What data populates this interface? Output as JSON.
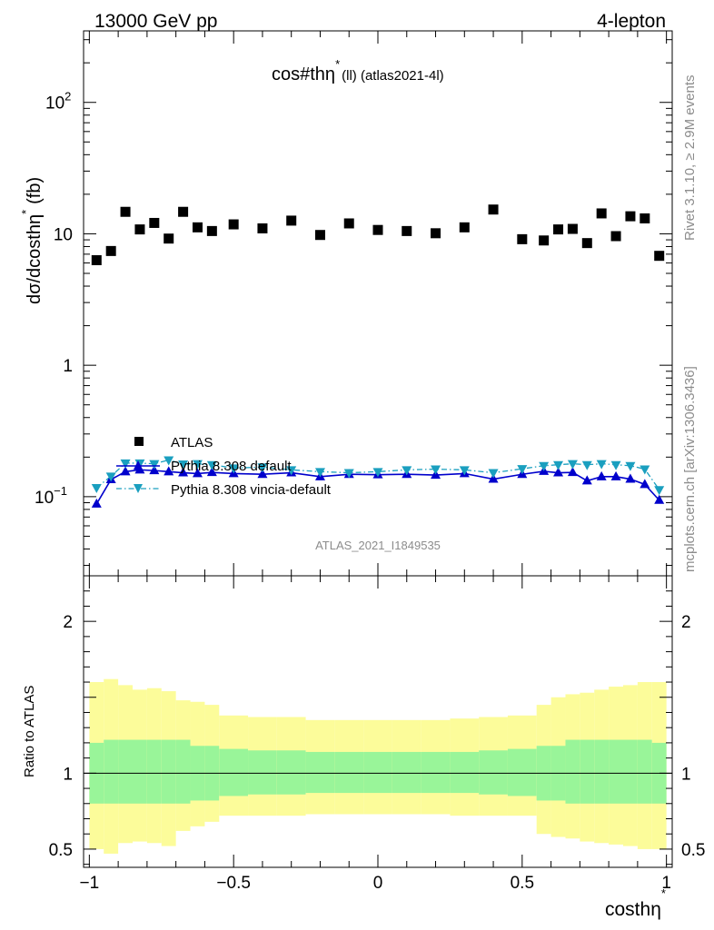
{
  "header": {
    "energy": "13000 GeV pp",
    "process": "4-lepton",
    "title_main": "cos#thη",
    "title_sup": "*",
    "title_sub": "(ll) (atlas2021-4l)",
    "side_top": "Rivet 3.1.10, ≥ 2.9M events",
    "side_bottom": "mcplots.cern.ch [arXiv:1306.3436]",
    "analysis": "ATLAS_2021_I1849535"
  },
  "axes": {
    "ylabel_top": "dσ/dcosthη",
    "ylabel_top_sup": "*",
    "ylabel_top_unit": "(fb)",
    "ylabel_bottom": "Ratio to ATLAS",
    "xlabel": "costhη",
    "xlabel_sup": "*",
    "x_ticks": [
      "−1",
      "−0.5",
      "0",
      "0.5",
      "1"
    ],
    "top_ticks": [
      "10",
      "1",
      "10",
      "10"
    ],
    "top_tick_exps": [
      "",
      "",
      "2",
      "−1"
    ],
    "ratio_ticks": [
      "2",
      "1",
      "0.5"
    ]
  },
  "legend": {
    "atlas": "ATLAS",
    "pythia_default": "Pythia 8.308 default",
    "pythia_vincia": "Pythia 8.308 vincia-default"
  },
  "colors": {
    "atlas": "#000000",
    "pythia_default": "#0000cc",
    "pythia_vincia": "#1a9fbf",
    "band_inner": "#99f599",
    "band_outer": "#fcfc9a"
  },
  "chart_data": {
    "type": "scatter",
    "xlim": [
      -1.02,
      1.02
    ],
    "ylim": [
      0.025,
      350
    ],
    "ratio_ylim": [
      0.38,
      2.3
    ],
    "y_scale": "log",
    "x": [
      -0.975,
      -0.925,
      -0.875,
      -0.825,
      -0.775,
      -0.725,
      -0.675,
      -0.625,
      -0.575,
      -0.5,
      -0.4,
      -0.3,
      -0.2,
      -0.1,
      0.0,
      0.1,
      0.2,
      0.3,
      0.4,
      0.5,
      0.575,
      0.625,
      0.675,
      0.725,
      0.775,
      0.825,
      0.875,
      0.925,
      0.975
    ],
    "bin_edges": [
      -1.0,
      -0.95,
      -0.9,
      -0.85,
      -0.8,
      -0.75,
      -0.7,
      -0.65,
      -0.6,
      -0.55,
      -0.45,
      -0.35,
      -0.25,
      -0.15,
      -0.05,
      0.05,
      0.15,
      0.25,
      0.35,
      0.45,
      0.55,
      0.6,
      0.65,
      0.7,
      0.75,
      0.8,
      0.85,
      0.9,
      0.95,
      1.0
    ],
    "series": [
      {
        "name": "ATLAS",
        "values": [
          6.3,
          7.4,
          14.7,
          10.8,
          12.1,
          9.2,
          14.7,
          11.2,
          10.5,
          11.8,
          11.0,
          12.6,
          9.8,
          12.0,
          10.7,
          10.5,
          10.1,
          11.2,
          15.3,
          9.1,
          8.9,
          10.8,
          10.9,
          8.5,
          14.3,
          9.6,
          13.6,
          13.1,
          6.8
        ]
      },
      {
        "name": "Pythia 8.308 default",
        "values": [
          0.088,
          0.135,
          0.155,
          0.16,
          0.158,
          0.155,
          0.152,
          0.15,
          0.153,
          0.15,
          0.148,
          0.152,
          0.142,
          0.148,
          0.147,
          0.148,
          0.146,
          0.15,
          0.136,
          0.148,
          0.156,
          0.152,
          0.153,
          0.132,
          0.142,
          0.142,
          0.136,
          0.124,
          0.094
        ]
      },
      {
        "name": "Pythia 8.308 vincia-default",
        "values": [
          0.117,
          0.143,
          0.18,
          0.18,
          0.178,
          0.19,
          0.177,
          0.178,
          0.175,
          0.165,
          0.168,
          0.16,
          0.155,
          0.152,
          0.155,
          0.16,
          0.162,
          0.16,
          0.152,
          0.163,
          0.172,
          0.175,
          0.178,
          0.175,
          0.178,
          0.175,
          0.172,
          0.162,
          0.113
        ]
      }
    ],
    "ratio_band_inner": [
      [
        0.8,
        1.2
      ],
      [
        0.8,
        1.22
      ],
      [
        0.8,
        1.22
      ],
      [
        0.8,
        1.22
      ],
      [
        0.8,
        1.22
      ],
      [
        0.8,
        1.22
      ],
      [
        0.8,
        1.22
      ],
      [
        0.82,
        1.18
      ],
      [
        0.82,
        1.18
      ],
      [
        0.85,
        1.16
      ],
      [
        0.86,
        1.15
      ],
      [
        0.86,
        1.15
      ],
      [
        0.87,
        1.14
      ],
      [
        0.87,
        1.14
      ],
      [
        0.87,
        1.14
      ],
      [
        0.87,
        1.14
      ],
      [
        0.87,
        1.14
      ],
      [
        0.87,
        1.14
      ],
      [
        0.86,
        1.15
      ],
      [
        0.85,
        1.16
      ],
      [
        0.82,
        1.18
      ],
      [
        0.82,
        1.18
      ],
      [
        0.8,
        1.22
      ],
      [
        0.8,
        1.22
      ],
      [
        0.8,
        1.22
      ],
      [
        0.8,
        1.22
      ],
      [
        0.8,
        1.22
      ],
      [
        0.8,
        1.22
      ],
      [
        0.8,
        1.2
      ]
    ],
    "ratio_band_outer": [
      [
        0.5,
        1.6
      ],
      [
        0.47,
        1.62
      ],
      [
        0.54,
        1.58
      ],
      [
        0.55,
        1.55
      ],
      [
        0.54,
        1.56
      ],
      [
        0.52,
        1.54
      ],
      [
        0.62,
        1.48
      ],
      [
        0.65,
        1.47
      ],
      [
        0.68,
        1.45
      ],
      [
        0.72,
        1.38
      ],
      [
        0.72,
        1.37
      ],
      [
        0.72,
        1.37
      ],
      [
        0.73,
        1.35
      ],
      [
        0.73,
        1.35
      ],
      [
        0.73,
        1.35
      ],
      [
        0.73,
        1.35
      ],
      [
        0.73,
        1.35
      ],
      [
        0.72,
        1.36
      ],
      [
        0.72,
        1.37
      ],
      [
        0.72,
        1.38
      ],
      [
        0.6,
        1.45
      ],
      [
        0.58,
        1.5
      ],
      [
        0.57,
        1.52
      ],
      [
        0.55,
        1.53
      ],
      [
        0.54,
        1.55
      ],
      [
        0.53,
        1.57
      ],
      [
        0.52,
        1.58
      ],
      [
        0.5,
        1.6
      ],
      [
        0.5,
        1.6
      ]
    ]
  }
}
